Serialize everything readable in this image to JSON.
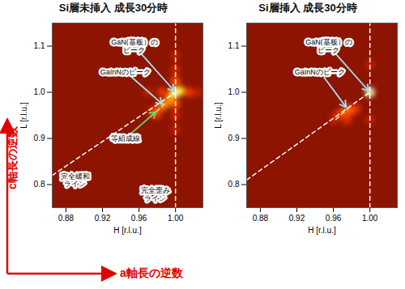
{
  "chart_data": [
    {
      "type": "heatmap",
      "title": "Si層未挿入 成長30分時",
      "xlabel": "H [r.l.u.]",
      "ylabel": "L [r.l.u.]",
      "xlim": [
        0.865,
        1.03
      ],
      "ylim": [
        0.75,
        1.15
      ],
      "xticks": [
        0.88,
        0.92,
        0.96,
        {
          "value": 1,
          "label": "1.00"
        }
      ],
      "yticks": [
        0.8,
        0.9,
        {
          "value": 1,
          "label": "1.0"
        },
        1.1
      ],
      "cells": {
        "h": [
          1.0,
          1.0,
          1.025,
          0.97,
          1.0,
          1.0,
          0.98,
          1.015,
          0.985,
          0.975,
          0.98,
          1.0,
          1.0,
          0.987,
          0.993,
          1.005,
          0.997,
          1.0
        ],
        "l": [
          1.08,
          0.92,
          1.0,
          1.0,
          1.05,
          0.95,
          0.95,
          1.0,
          1.0,
          0.955,
          0.962,
          1.025,
          0.975,
          0.972,
          0.982,
          1.003,
          0.997,
          1.0
        ],
        "intensity": [
          20,
          20,
          20,
          20,
          25,
          25,
          25,
          35,
          35,
          35,
          45,
          45,
          45,
          60,
          60,
          80,
          80,
          100
        ]
      },
      "lines": [
        {
          "h": [
            0.865,
            1.0
          ],
          "l": [
            0.82,
            1.0
          ],
          "line_style": "dashed",
          "color": "#ffffff"
        },
        {
          "h": [
            1.0,
            1.0
          ],
          "l": [
            0.75,
            1.15
          ],
          "line_style": "dashed",
          "color": "#ffffff"
        },
        {
          "h": [
            0.988,
            0.972
          ],
          "l": [
            0.975,
            0.945
          ],
          "line_style": "dashed",
          "color": "#ffd8b0"
        }
      ],
      "annotations": [
        {
          "text": "GaN(基板）の\nピーク",
          "h": 1.0,
          "l": 1.0,
          "color": "#9fe3f0"
        },
        {
          "text": "GaInNのピーク",
          "h": 0.987,
          "l": 0.972,
          "color": "#9fe3f0"
        },
        {
          "text": "等組成線",
          "h": 0.98,
          "l": 0.96,
          "color": "#66dd66"
        },
        {
          "text": "完全緩和\nライン",
          "h": 0.885,
          "l": 0.846
        },
        {
          "text": "完全歪み\nライン",
          "h": 1.0,
          "l": 0.8
        }
      ]
    },
    {
      "type": "heatmap",
      "title": "Si層挿入 成長30分時",
      "xlabel": "H [r.l.u.]",
      "ylabel": "L [r.l.u.]",
      "xlim": [
        0.865,
        1.03
      ],
      "ylim": [
        0.75,
        1.15
      ],
      "xticks": [
        0.88,
        0.92,
        0.96,
        {
          "value": 1,
          "label": "1.00"
        }
      ],
      "yticks": [
        0.8,
        0.9,
        {
          "value": 1,
          "label": "1.0"
        },
        1.1
      ],
      "cells": {
        "h": [
          1.0,
          1.0,
          0.96,
          0.965,
          0.985,
          0.975,
          0.97,
          0.98,
          0.975,
          1.0
        ],
        "l": [
          1.06,
          0.94,
          0.94,
          0.95,
          0.965,
          0.94,
          0.955,
          0.96,
          0.962,
          1.0
        ],
        "intensity": [
          20,
          20,
          20,
          30,
          30,
          30,
          40,
          40,
          50,
          100
        ]
      },
      "lines": [
        {
          "h": [
            0.865,
            1.0
          ],
          "l": [
            0.81,
            1.0
          ],
          "line_style": "dashed",
          "color": "#ffffff"
        },
        {
          "h": [
            1.0,
            1.0
          ],
          "l": [
            0.75,
            1.15
          ],
          "line_style": "dashed",
          "color": "#ffffff"
        },
        {
          "h": [
            0.978,
            0.962
          ],
          "l": [
            0.968,
            0.94
          ],
          "line_style": "dashed",
          "color": "#ffd8b0"
        }
      ],
      "annotations": [
        {
          "text": "GaN(基板）の\nピーク",
          "h": 1.0,
          "l": 1.0,
          "color": "#9fe3f0"
        },
        {
          "text": "GaInNのピーク",
          "h": 0.975,
          "l": 0.965,
          "color": "#9fe3f0"
        }
      ]
    }
  ],
  "outer_labels": {
    "x": "a軸長の逆数",
    "y": "c軸長の逆数",
    "color": "#e00000"
  }
}
